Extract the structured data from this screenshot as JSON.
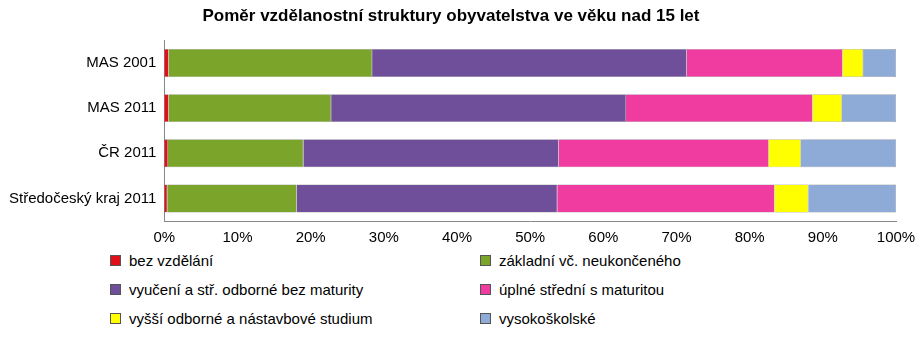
{
  "chart_data": {
    "type": "bar",
    "title": "Poměr vzdělanostní struktury obyvatelstva ve věku nad 15 let",
    "orientation": "horizontal",
    "stacked": true,
    "grid": false,
    "legend": "bottom",
    "categories": [
      "MAS 2001",
      "MAS 2011",
      "ČR 2011",
      "Středočeský kraj 2011"
    ],
    "series": [
      {
        "name": "bez vzdělání",
        "color": "#e0101a",
        "values": [
          0.6,
          0.6,
          0.5,
          0.4
        ]
      },
      {
        "name": "základní vč. neukončeného",
        "color": "#7aa42a",
        "values": [
          27.8,
          22.2,
          18.5,
          17.7
        ]
      },
      {
        "name": "vyučení a stř. odborné bez maturity",
        "color": "#6f4f9a",
        "values": [
          43.0,
          40.3,
          34.9,
          35.6
        ]
      },
      {
        "name": "úplné střední s maturitou",
        "color": "#f03ca0",
        "values": [
          21.3,
          25.5,
          28.7,
          29.7
        ]
      },
      {
        "name": "vyšší odborné a nástavbové studium",
        "color": "#ffff00",
        "values": [
          2.8,
          4.0,
          4.4,
          4.6
        ]
      },
      {
        "name": "vysokoškolské",
        "color": "#8eaad6",
        "values": [
          4.5,
          7.4,
          13.0,
          12.0
        ]
      }
    ],
    "xlim": [
      0,
      100
    ],
    "xticks": [
      {
        "value": 0,
        "label": "0%"
      },
      {
        "value": 10,
        "label": "10%"
      },
      {
        "value": 20,
        "label": "20%"
      },
      {
        "value": 30,
        "label": "30%"
      },
      {
        "value": 40,
        "label": "40%"
      },
      {
        "value": 50,
        "label": "50%"
      },
      {
        "value": 60,
        "label": "60%"
      },
      {
        "value": 70,
        "label": "70%"
      },
      {
        "value": 80,
        "label": "80%"
      },
      {
        "value": 90,
        "label": "90%"
      },
      {
        "value": 100,
        "label": "100%"
      }
    ]
  }
}
